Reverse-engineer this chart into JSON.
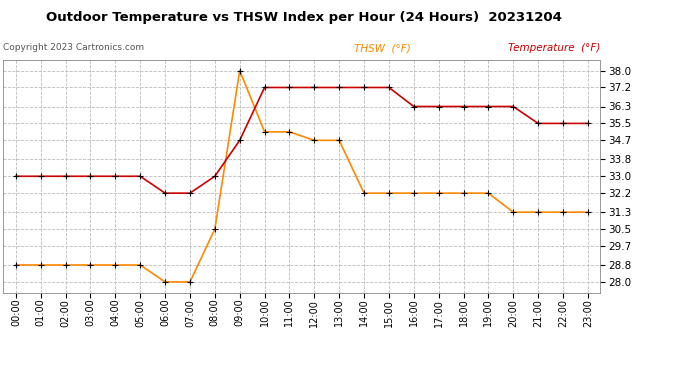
{
  "title": "Outdoor Temperature vs THSW Index per Hour (24 Hours)  20231204",
  "copyright": "Copyright 2023 Cartronics.com",
  "legend_thsw": "THSW  (°F)",
  "legend_temp": "Temperature  (°F)",
  "hours": [
    0,
    1,
    2,
    3,
    4,
    5,
    6,
    7,
    8,
    9,
    10,
    11,
    12,
    13,
    14,
    15,
    16,
    17,
    18,
    19,
    20,
    21,
    22,
    23
  ],
  "temperature": [
    33.0,
    33.0,
    33.0,
    33.0,
    33.0,
    33.0,
    32.2,
    32.2,
    33.0,
    34.7,
    37.2,
    37.2,
    37.2,
    37.2,
    37.2,
    37.2,
    36.3,
    36.3,
    36.3,
    36.3,
    36.3,
    35.5,
    35.5,
    35.5
  ],
  "thsw": [
    28.8,
    28.8,
    28.8,
    28.8,
    28.8,
    28.8,
    28.0,
    28.0,
    30.5,
    38.0,
    35.1,
    35.1,
    34.7,
    34.7,
    32.2,
    32.2,
    32.2,
    32.2,
    32.2,
    32.2,
    31.3,
    31.3,
    31.3,
    31.3
  ],
  "ylim": [
    27.5,
    38.5
  ],
  "yticks": [
    28.0,
    28.8,
    29.7,
    30.5,
    31.3,
    32.2,
    33.0,
    33.8,
    34.7,
    35.5,
    36.3,
    37.2,
    38.0
  ],
  "temp_color": "#cc0000",
  "thsw_color": "#ff8800",
  "marker_color": "#000000",
  "bg_color": "#ffffff",
  "grid_color": "#bbbbbb",
  "title_color": "#000000",
  "copyright_color": "#555555",
  "legend_thsw_color": "#ff8800",
  "legend_temp_color": "#cc0000",
  "fig_width": 6.9,
  "fig_height": 3.75,
  "dpi": 100
}
